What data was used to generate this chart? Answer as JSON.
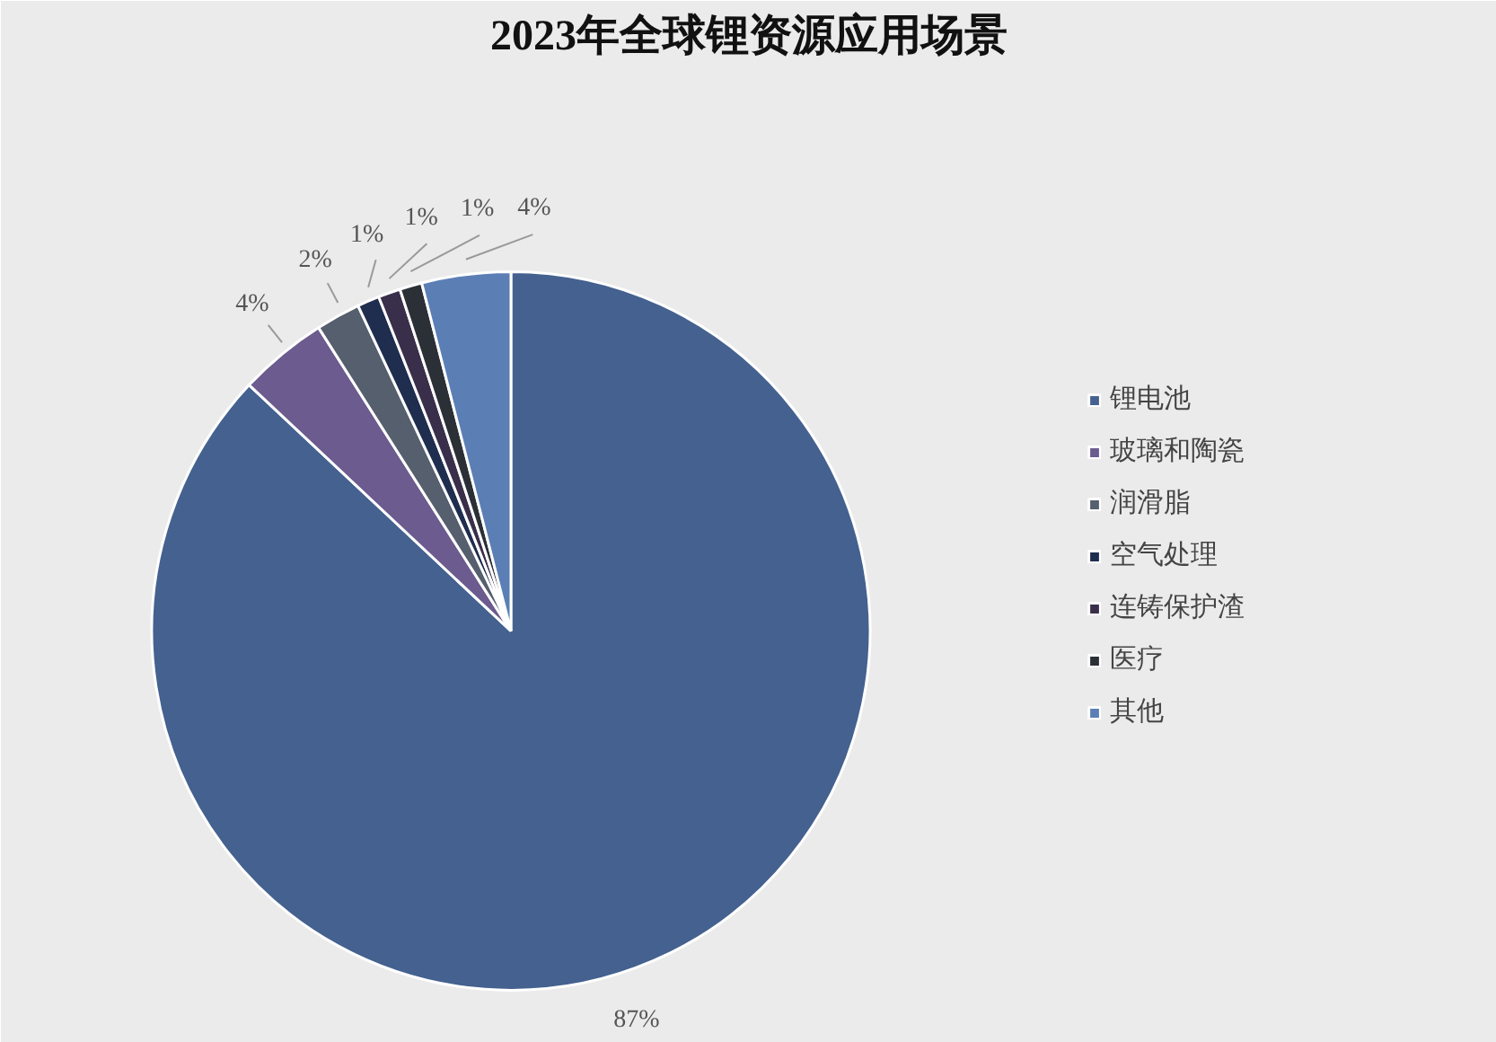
{
  "chart_data": {
    "type": "pie",
    "title": "2023年全球锂资源应用场景",
    "categories": [
      "锂电池",
      "玻璃和陶瓷",
      "润滑脂",
      "空气处理",
      "连铸保护渣",
      "医疗",
      "其他"
    ],
    "values": [
      87,
      4,
      2,
      1,
      1,
      1,
      4
    ],
    "colors": [
      "#44618f",
      "#6b5b8e",
      "#555f6e",
      "#1f2d4e",
      "#3a2f4a",
      "#2b2f36",
      "#5b7fb5"
    ],
    "value_labels": [
      "87%",
      "4%",
      "2%",
      "1%",
      "1%",
      "1%",
      "4%"
    ],
    "legend": "right"
  }
}
